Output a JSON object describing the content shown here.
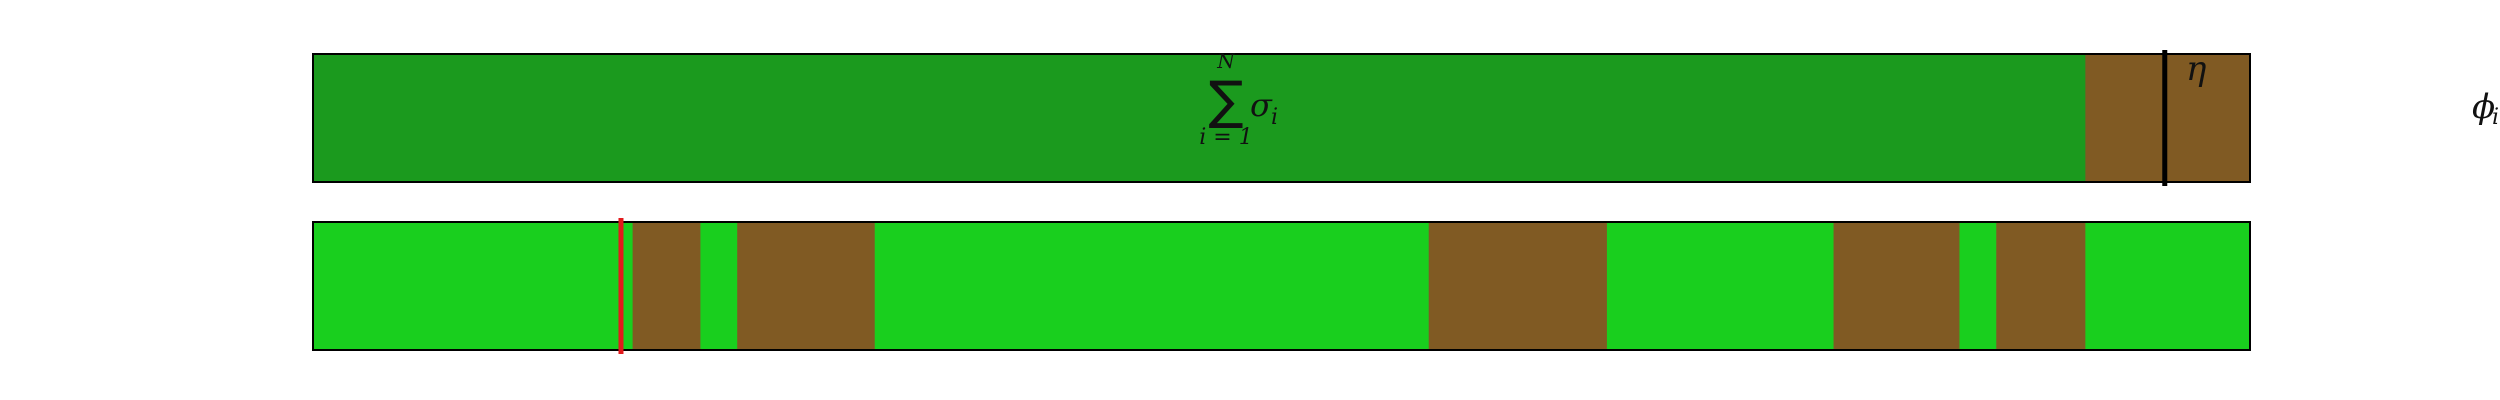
{
  "colors": {
    "dark_green": "#1b9a1e",
    "bright_green": "#19cf1e",
    "brown": "#805a23",
    "marker_black": "#000000",
    "marker_red": "#e31a1c",
    "outline": "#000000"
  },
  "scale": {
    "min": 0,
    "max": 1
  },
  "top_bar": {
    "label_sum_upper": "N",
    "label_sum_symbol": "∑",
    "label_sum_lower": "i = 1",
    "label_sigma": "σ",
    "label_sigma_sub": "i",
    "label_eta": "η",
    "segments": [
      {
        "start": 0.0,
        "end": 0.915,
        "color": "dark_green"
      },
      {
        "start": 0.915,
        "end": 1.0,
        "color": "brown"
      }
    ],
    "marker": {
      "position": 0.956,
      "color": "marker_black"
    }
  },
  "bottom_bar": {
    "segments": [
      {
        "start": 0.0,
        "end": 0.165,
        "color": "bright_green"
      },
      {
        "start": 0.165,
        "end": 0.2,
        "color": "brown"
      },
      {
        "start": 0.2,
        "end": 0.219,
        "color": "bright_green"
      },
      {
        "start": 0.219,
        "end": 0.29,
        "color": "brown"
      },
      {
        "start": 0.29,
        "end": 0.576,
        "color": "bright_green"
      },
      {
        "start": 0.576,
        "end": 0.668,
        "color": "brown"
      },
      {
        "start": 0.668,
        "end": 0.785,
        "color": "bright_green"
      },
      {
        "start": 0.785,
        "end": 0.85,
        "color": "brown"
      },
      {
        "start": 0.85,
        "end": 0.869,
        "color": "bright_green"
      },
      {
        "start": 0.869,
        "end": 0.915,
        "color": "brown"
      },
      {
        "start": 0.915,
        "end": 1.0,
        "color": "bright_green"
      }
    ],
    "marker": {
      "position": 0.159,
      "color": "marker_red"
    }
  },
  "side_label": {
    "symbol": "ϕ",
    "subscript": "i"
  }
}
